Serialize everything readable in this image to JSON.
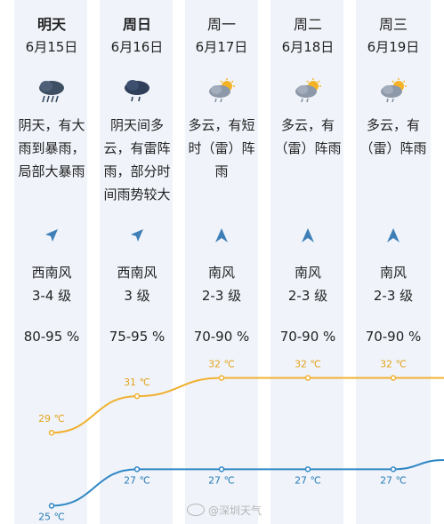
{
  "days": [
    {
      "day": "明天",
      "date": "6月15日",
      "icon": "heavy-rain-cloud-icon",
      "desc": [
        "阴天，有大",
        "雨到暴雨，",
        "局部大暴雨"
      ],
      "wind_dir_icon": "southwest-wind-arrow-icon",
      "wind_name": "西南风",
      "wind_level": "3-4 级",
      "humidity": "80-95 %",
      "high": "29 ℃",
      "low": "25 ℃",
      "bold": true
    },
    {
      "day": "周日",
      "date": "6月16日",
      "icon": "rain-cloud-icon",
      "desc": [
        "阴天间多",
        "云，有雷阵",
        "雨，部分时",
        "间雨势较大"
      ],
      "wind_dir_icon": "southwest-wind-arrow-icon",
      "wind_name": "西南风",
      "wind_level": "3 级",
      "humidity": "75-95 %",
      "high": "31 ℃",
      "low": "27 ℃",
      "bold": true
    },
    {
      "day": "周一",
      "date": "6月17日",
      "icon": "sun-cloud-rain-icon",
      "desc": [
        "多云，有短",
        "时（雷）阵",
        "雨"
      ],
      "wind_dir_icon": "south-wind-arrow-icon",
      "wind_name": "南风",
      "wind_level": "2-3 级",
      "humidity": "70-90 %",
      "high": "32 ℃",
      "low": "27 ℃",
      "bold": false
    },
    {
      "day": "周二",
      "date": "6月18日",
      "icon": "sun-cloud-rain-icon",
      "desc": [
        "多云，有",
        "（雷）阵雨"
      ],
      "wind_dir_icon": "south-wind-arrow-icon",
      "wind_name": "南风",
      "wind_level": "2-3 级",
      "humidity": "70-90 %",
      "high": "32 ℃",
      "low": "27 ℃",
      "bold": false
    },
    {
      "day": "周三",
      "date": "6月19日",
      "icon": "sun-cloud-rain-icon",
      "desc": [
        "多云，有",
        "（雷）阵雨"
      ],
      "wind_dir_icon": "south-wind-arrow-icon",
      "wind_name": "南风",
      "wind_level": "2-3 级",
      "humidity": "70-90 %",
      "high": "32 ℃",
      "low": "27 ℃",
      "bold": false
    }
  ],
  "colors": {
    "high_line": "#f0b030",
    "low_line": "#2f86c4",
    "high_label": "#e3a21a",
    "low_label": "#2a7cb5",
    "column_bg": "#f0f4fa",
    "arrow": "#3e7fb8"
  },
  "watermark": "@深圳天气",
  "chart_data": {
    "type": "line",
    "categories": [
      "6月15日",
      "6月16日",
      "6月17日",
      "6月18日",
      "6月19日"
    ],
    "series": [
      {
        "values": [
          29,
          31,
          32,
          32,
          32
        ]
      },
      {
        "values": [
          25,
          27,
          27,
          27,
          27
        ]
      }
    ],
    "ylim": [
      24,
      33
    ]
  }
}
